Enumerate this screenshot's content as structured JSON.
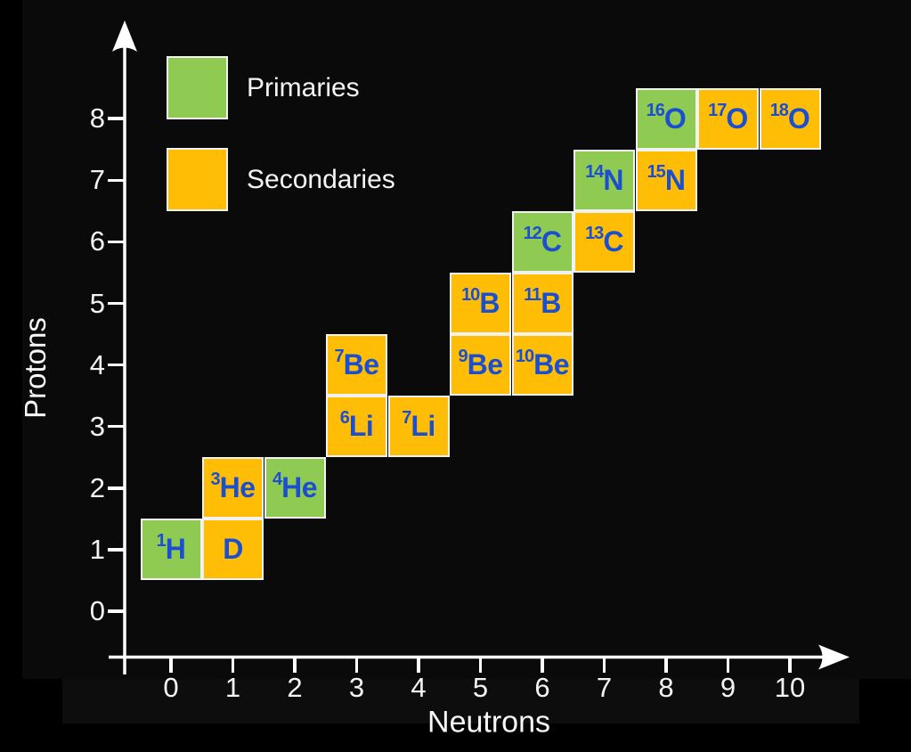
{
  "colors": {
    "primaries_green": "#8FCB52",
    "secondaries_orange": "#FFBE05",
    "isotope_text_blue": "#1B4FD1",
    "axis_white": "#FFFFFF",
    "background_black": "#000000"
  },
  "legend": {
    "items": [
      {
        "label": "Primaries",
        "category": "primary"
      },
      {
        "label": "Secondaries",
        "category": "secondary"
      }
    ]
  },
  "axes": {
    "x": {
      "label": "Neutrons",
      "ticks": [
        0,
        1,
        2,
        3,
        4,
        5,
        6,
        7,
        8,
        9,
        10
      ]
    },
    "y": {
      "label": "Protons",
      "ticks": [
        0,
        1,
        2,
        3,
        4,
        5,
        6,
        7,
        8
      ]
    }
  },
  "chart_data": {
    "type": "scatter",
    "subtype": "chart-of-nuclides-grid",
    "title": "",
    "xlabel": "Neutrons",
    "ylabel": "Protons",
    "xlim": [
      -0.5,
      10.5
    ],
    "ylim": [
      -0.5,
      8.5
    ],
    "grid": false,
    "legend_position": "top-left",
    "points": [
      {
        "neutrons": 0,
        "protons": 1,
        "isotope": "1H",
        "mass_number": "1",
        "symbol": "H",
        "category": "primary"
      },
      {
        "neutrons": 1,
        "protons": 1,
        "isotope": "D",
        "mass_number": "",
        "symbol": "D",
        "category": "secondary"
      },
      {
        "neutrons": 1,
        "protons": 2,
        "isotope": "3He",
        "mass_number": "3",
        "symbol": "He",
        "category": "secondary"
      },
      {
        "neutrons": 2,
        "protons": 2,
        "isotope": "4He",
        "mass_number": "4",
        "symbol": "He",
        "category": "primary"
      },
      {
        "neutrons": 3,
        "protons": 3,
        "isotope": "6Li",
        "mass_number": "6",
        "symbol": "Li",
        "category": "secondary"
      },
      {
        "neutrons": 4,
        "protons": 3,
        "isotope": "7Li",
        "mass_number": "7",
        "symbol": "Li",
        "category": "secondary"
      },
      {
        "neutrons": 3,
        "protons": 4,
        "isotope": "7Be",
        "mass_number": "7",
        "symbol": "Be",
        "category": "secondary"
      },
      {
        "neutrons": 5,
        "protons": 4,
        "isotope": "9Be",
        "mass_number": "9",
        "symbol": "Be",
        "category": "secondary"
      },
      {
        "neutrons": 6,
        "protons": 4,
        "isotope": "10Be",
        "mass_number": "10",
        "symbol": "Be",
        "category": "secondary"
      },
      {
        "neutrons": 5,
        "protons": 5,
        "isotope": "10B",
        "mass_number": "10",
        "symbol": "B",
        "category": "secondary"
      },
      {
        "neutrons": 6,
        "protons": 5,
        "isotope": "11B",
        "mass_number": "11",
        "symbol": "B",
        "category": "secondary"
      },
      {
        "neutrons": 6,
        "protons": 6,
        "isotope": "12C",
        "mass_number": "12",
        "symbol": "C",
        "category": "primary"
      },
      {
        "neutrons": 7,
        "protons": 6,
        "isotope": "13C",
        "mass_number": "13",
        "symbol": "C",
        "category": "secondary"
      },
      {
        "neutrons": 7,
        "protons": 7,
        "isotope": "14N",
        "mass_number": "14",
        "symbol": "N",
        "category": "primary"
      },
      {
        "neutrons": 8,
        "protons": 7,
        "isotope": "15N",
        "mass_number": "15",
        "symbol": "N",
        "category": "secondary"
      },
      {
        "neutrons": 8,
        "protons": 8,
        "isotope": "16O",
        "mass_number": "16",
        "symbol": "O",
        "category": "primary"
      },
      {
        "neutrons": 9,
        "protons": 8,
        "isotope": "17O",
        "mass_number": "17",
        "symbol": "O",
        "category": "secondary"
      },
      {
        "neutrons": 10,
        "protons": 8,
        "isotope": "18O",
        "mass_number": "18",
        "symbol": "O",
        "category": "secondary"
      }
    ]
  }
}
